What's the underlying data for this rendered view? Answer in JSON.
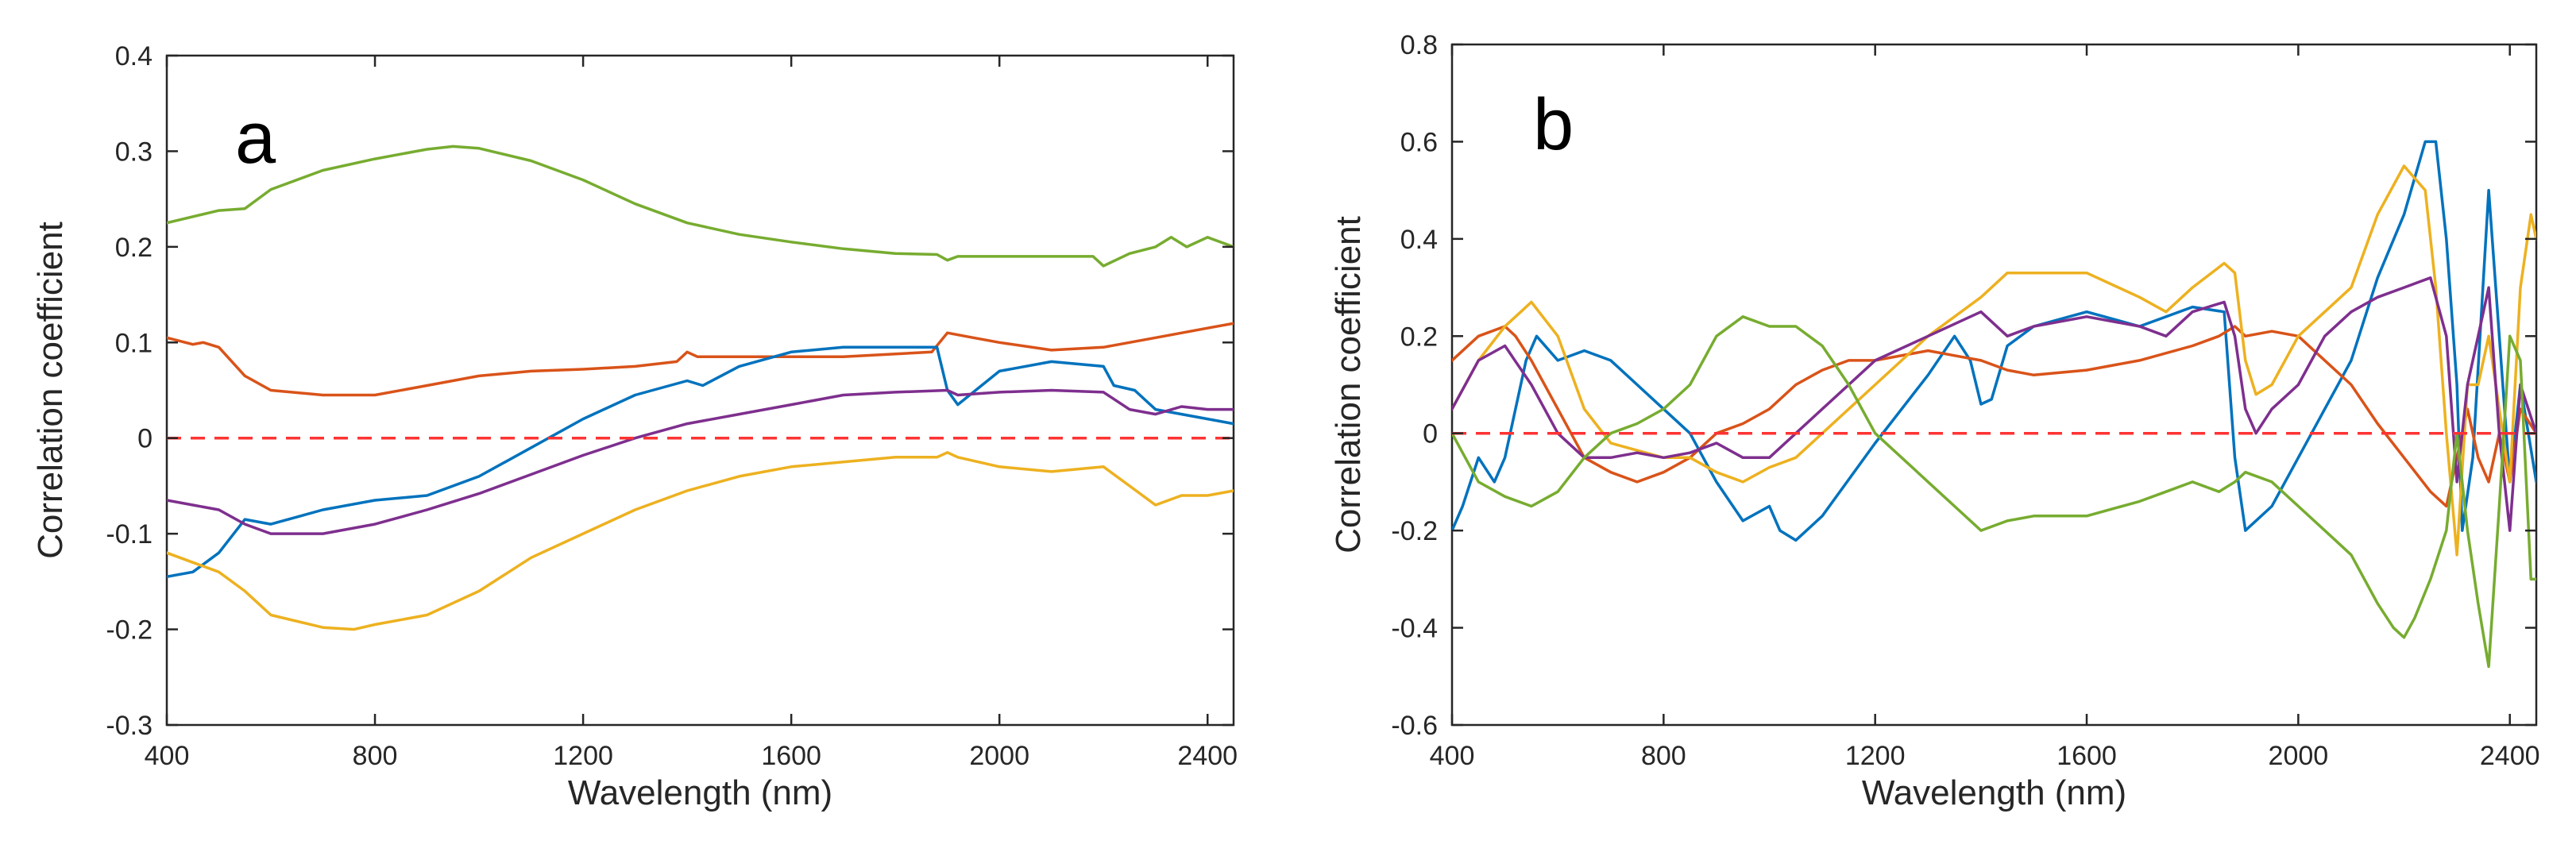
{
  "colors": {
    "blue": "#0072BD",
    "orange": "#D95319",
    "yellow": "#EDB120",
    "purple": "#7E2F8E",
    "green": "#77AC30",
    "zero_line": "#FF3333",
    "axes": "#262626"
  },
  "chart_data": [
    {
      "type": "line",
      "panel_label": "a",
      "xlabel": "Wavelength (nm)",
      "ylabel": "Correlation coefficient",
      "xlim": [
        400,
        2450
      ],
      "ylim": [
        -0.3,
        0.4
      ],
      "xticks": [
        400,
        800,
        1200,
        1600,
        2000,
        2400
      ],
      "xtick_labels": [
        "400",
        "800",
        "1200",
        "1600",
        "2000",
        "2400"
      ],
      "yticks": [
        -0.3,
        -0.2,
        -0.1,
        0,
        0.1,
        0.2,
        0.3,
        0.4
      ],
      "ytick_labels": [
        "-0.3",
        "-0.2",
        "-0.1",
        "0",
        "0.1",
        "0.2",
        "0.3",
        "0.4"
      ],
      "grid": false,
      "reference_line": {
        "y": 0,
        "style": "dashed",
        "color": "zero_line"
      },
      "series": [
        {
          "name": "green",
          "color": "green",
          "x": [
            400,
            500,
            550,
            600,
            700,
            800,
            900,
            950,
            1000,
            1100,
            1200,
            1300,
            1400,
            1500,
            1600,
            1700,
            1800,
            1880,
            1900,
            1920,
            2000,
            2100,
            2180,
            2200,
            2250,
            2300,
            2330,
            2360,
            2400,
            2450
          ],
          "y": [
            0.225,
            0.238,
            0.24,
            0.26,
            0.28,
            0.292,
            0.302,
            0.305,
            0.303,
            0.29,
            0.27,
            0.245,
            0.225,
            0.213,
            0.205,
            0.198,
            0.193,
            0.192,
            0.186,
            0.19,
            0.19,
            0.19,
            0.19,
            0.18,
            0.193,
            0.2,
            0.21,
            0.2,
            0.21,
            0.2
          ]
        },
        {
          "name": "orange",
          "color": "orange",
          "x": [
            400,
            450,
            470,
            500,
            550,
            600,
            700,
            800,
            900,
            1000,
            1100,
            1200,
            1300,
            1380,
            1400,
            1420,
            1500,
            1600,
            1700,
            1800,
            1870,
            1900,
            1950,
            2000,
            2100,
            2200,
            2300,
            2400,
            2450
          ],
          "y": [
            0.105,
            0.098,
            0.1,
            0.095,
            0.065,
            0.05,
            0.045,
            0.045,
            0.055,
            0.065,
            0.07,
            0.072,
            0.075,
            0.08,
            0.09,
            0.085,
            0.085,
            0.085,
            0.085,
            0.088,
            0.09,
            0.11,
            0.105,
            0.1,
            0.092,
            0.095,
            0.105,
            0.115,
            0.12
          ]
        },
        {
          "name": "blue",
          "color": "blue",
          "x": [
            400,
            450,
            500,
            550,
            600,
            700,
            800,
            900,
            1000,
            1100,
            1200,
            1300,
            1400,
            1430,
            1500,
            1600,
            1700,
            1800,
            1880,
            1900,
            1920,
            2000,
            2100,
            2200,
            2220,
            2260,
            2300,
            2350,
            2400,
            2450
          ],
          "y": [
            -0.145,
            -0.14,
            -0.12,
            -0.085,
            -0.09,
            -0.075,
            -0.065,
            -0.06,
            -0.04,
            -0.01,
            0.02,
            0.045,
            0.06,
            0.055,
            0.075,
            0.09,
            0.095,
            0.095,
            0.095,
            0.05,
            0.035,
            0.07,
            0.08,
            0.075,
            0.055,
            0.05,
            0.03,
            0.025,
            0.02,
            0.015
          ]
        },
        {
          "name": "purple",
          "color": "purple",
          "x": [
            400,
            450,
            500,
            550,
            600,
            700,
            800,
            900,
            1000,
            1100,
            1200,
            1300,
            1400,
            1500,
            1600,
            1700,
            1800,
            1900,
            1920,
            2000,
            2100,
            2200,
            2250,
            2300,
            2350,
            2400,
            2450
          ],
          "y": [
            -0.065,
            -0.07,
            -0.075,
            -0.09,
            -0.1,
            -0.1,
            -0.09,
            -0.075,
            -0.058,
            -0.038,
            -0.018,
            0,
            0.015,
            0.025,
            0.035,
            0.045,
            0.048,
            0.05,
            0.045,
            0.048,
            0.05,
            0.048,
            0.03,
            0.025,
            0.033,
            0.03,
            0.03
          ]
        },
        {
          "name": "yellow",
          "color": "yellow",
          "x": [
            400,
            450,
            500,
            550,
            600,
            700,
            760,
            800,
            900,
            1000,
            1100,
            1200,
            1300,
            1400,
            1500,
            1600,
            1700,
            1800,
            1880,
            1900,
            1920,
            2000,
            2100,
            2200,
            2250,
            2300,
            2350,
            2400,
            2450
          ],
          "y": [
            -0.12,
            -0.13,
            -0.14,
            -0.16,
            -0.185,
            -0.198,
            -0.2,
            -0.195,
            -0.185,
            -0.16,
            -0.125,
            -0.1,
            -0.075,
            -0.055,
            -0.04,
            -0.03,
            -0.025,
            -0.02,
            -0.02,
            -0.015,
            -0.02,
            -0.03,
            -0.035,
            -0.03,
            -0.05,
            -0.07,
            -0.06,
            -0.06,
            -0.055
          ]
        }
      ]
    },
    {
      "type": "line",
      "panel_label": "b",
      "xlabel": "Wavelength (nm)",
      "ylabel": "Correlation coefficient",
      "xlim": [
        400,
        2450
      ],
      "ylim": [
        -0.6,
        0.8
      ],
      "xticks": [
        400,
        800,
        1200,
        1600,
        2000,
        2400
      ],
      "xtick_labels": [
        "400",
        "800",
        "1200",
        "1600",
        "2000",
        "2400"
      ],
      "yticks": [
        -0.6,
        -0.4,
        -0.2,
        0,
        0.2,
        0.4,
        0.6,
        0.8
      ],
      "ytick_labels": [
        "-0.6",
        "-0.4",
        "-0.2",
        "0",
        "0.2",
        "0.4",
        "0.6",
        "0.8"
      ],
      "grid": false,
      "reference_line": {
        "y": 0,
        "style": "dashed",
        "color": "zero_line"
      },
      "series": [
        {
          "name": "blue",
          "color": "blue",
          "x": [
            400,
            420,
            450,
            480,
            500,
            540,
            560,
            600,
            650,
            700,
            800,
            850,
            900,
            950,
            1000,
            1020,
            1050,
            1100,
            1200,
            1300,
            1350,
            1380,
            1400,
            1420,
            1450,
            1500,
            1600,
            1700,
            1800,
            1860,
            1880,
            1900,
            1950,
            2000,
            2100,
            2150,
            2200,
            2240,
            2260,
            2280,
            2300,
            2310,
            2330,
            2360,
            2380,
            2400,
            2420,
            2450
          ],
          "y": [
            -0.2,
            -0.15,
            -0.05,
            -0.1,
            -0.05,
            0.15,
            0.2,
            0.15,
            0.17,
            0.15,
            0.05,
            0,
            -0.1,
            -0.18,
            -0.15,
            -0.2,
            -0.22,
            -0.17,
            -0.02,
            0.12,
            0.2,
            0.15,
            0.06,
            0.07,
            0.18,
            0.22,
            0.25,
            0.22,
            0.26,
            0.25,
            -0.05,
            -0.2,
            -0.15,
            -0.05,
            0.15,
            0.32,
            0.45,
            0.6,
            0.6,
            0.4,
            0.1,
            -0.2,
            -0.05,
            0.5,
            0.2,
            -0.1,
            0.1,
            -0.1
          ]
        },
        {
          "name": "orange",
          "color": "orange",
          "x": [
            400,
            450,
            500,
            520,
            550,
            600,
            650,
            700,
            750,
            800,
            850,
            900,
            950,
            1000,
            1050,
            1100,
            1150,
            1200,
            1300,
            1350,
            1400,
            1450,
            1500,
            1600,
            1700,
            1800,
            1850,
            1880,
            1900,
            1950,
            2000,
            2050,
            2100,
            2150,
            2200,
            2250,
            2280,
            2300,
            2320,
            2340,
            2360,
            2380,
            2400,
            2420,
            2450
          ],
          "y": [
            0.15,
            0.2,
            0.22,
            0.2,
            0.15,
            0.05,
            -0.05,
            -0.08,
            -0.1,
            -0.08,
            -0.05,
            0,
            0.02,
            0.05,
            0.1,
            0.13,
            0.15,
            0.15,
            0.17,
            0.16,
            0.15,
            0.13,
            0.12,
            0.13,
            0.15,
            0.18,
            0.2,
            0.22,
            0.2,
            0.21,
            0.2,
            0.15,
            0.1,
            0.02,
            -0.05,
            -0.12,
            -0.15,
            -0.05,
            0.05,
            -0.05,
            -0.1,
            0,
            -0.1,
            0.05,
            0
          ]
        },
        {
          "name": "yellow",
          "color": "yellow",
          "x": [
            400,
            450,
            500,
            550,
            600,
            650,
            700,
            800,
            850,
            900,
            950,
            1000,
            1050,
            1100,
            1200,
            1300,
            1400,
            1450,
            1500,
            1600,
            1700,
            1750,
            1800,
            1860,
            1880,
            1900,
            1920,
            1950,
            2000,
            2100,
            2150,
            2200,
            2240,
            2260,
            2280,
            2300,
            2320,
            2340,
            2360,
            2380,
            2400,
            2420,
            2440,
            2450
          ],
          "y": [
            0.05,
            0.15,
            0.22,
            0.27,
            0.2,
            0.05,
            -0.02,
            -0.05,
            -0.05,
            -0.08,
            -0.1,
            -0.07,
            -0.05,
            0,
            0.1,
            0.2,
            0.28,
            0.33,
            0.33,
            0.33,
            0.28,
            0.25,
            0.3,
            0.35,
            0.33,
            0.15,
            0.08,
            0.1,
            0.2,
            0.3,
            0.45,
            0.55,
            0.5,
            0.3,
            0,
            -0.25,
            0.1,
            0.1,
            0.2,
            0.05,
            -0.1,
            0.3,
            0.45,
            0.4
          ]
        },
        {
          "name": "purple",
          "color": "purple",
          "x": [
            400,
            450,
            500,
            550,
            600,
            650,
            700,
            750,
            800,
            850,
            900,
            950,
            1000,
            1050,
            1100,
            1200,
            1300,
            1400,
            1450,
            1500,
            1600,
            1700,
            1750,
            1800,
            1860,
            1880,
            1900,
            1920,
            1950,
            2000,
            2050,
            2100,
            2150,
            2200,
            2250,
            2280,
            2300,
            2320,
            2340,
            2360,
            2380,
            2400,
            2420,
            2450
          ],
          "y": [
            0.05,
            0.15,
            0.18,
            0.1,
            0,
            -0.05,
            -0.05,
            -0.04,
            -0.05,
            -0.04,
            -0.02,
            -0.05,
            -0.05,
            0,
            0.05,
            0.15,
            0.2,
            0.25,
            0.2,
            0.22,
            0.24,
            0.22,
            0.2,
            0.25,
            0.27,
            0.2,
            0.05,
            0,
            0.05,
            0.1,
            0.2,
            0.25,
            0.28,
            0.3,
            0.32,
            0.2,
            -0.1,
            0.1,
            0.2,
            0.3,
            0,
            -0.2,
            0.1,
            0
          ]
        },
        {
          "name": "green",
          "color": "green",
          "x": [
            400,
            450,
            500,
            550,
            600,
            650,
            700,
            750,
            800,
            850,
            900,
            950,
            1000,
            1050,
            1100,
            1150,
            1200,
            1300,
            1350,
            1400,
            1450,
            1500,
            1600,
            1700,
            1750,
            1800,
            1850,
            1880,
            1900,
            1950,
            2000,
            2050,
            2100,
            2150,
            2180,
            2200,
            2220,
            2250,
            2280,
            2300,
            2320,
            2340,
            2360,
            2380,
            2400,
            2420,
            2440,
            2450
          ],
          "y": [
            0,
            -0.1,
            -0.13,
            -0.15,
            -0.12,
            -0.05,
            0,
            0.02,
            0.05,
            0.1,
            0.2,
            0.24,
            0.22,
            0.22,
            0.18,
            0.1,
            0,
            -0.1,
            -0.15,
            -0.2,
            -0.18,
            -0.17,
            -0.17,
            -0.14,
            -0.12,
            -0.1,
            -0.12,
            -0.1,
            -0.08,
            -0.1,
            -0.15,
            -0.2,
            -0.25,
            -0.35,
            -0.4,
            -0.42,
            -0.38,
            -0.3,
            -0.2,
            0,
            -0.2,
            -0.35,
            -0.48,
            -0.15,
            0.2,
            0.15,
            -0.3,
            -0.3
          ]
        }
      ]
    }
  ]
}
